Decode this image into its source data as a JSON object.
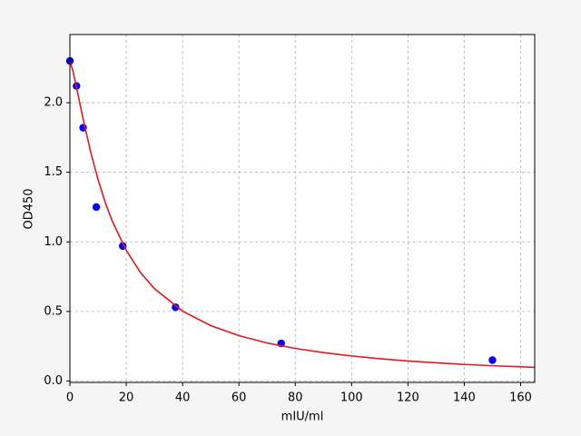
{
  "chart_data": {
    "type": "scatter",
    "xlabel": "mIU/ml",
    "ylabel": "OD450",
    "xlim": [
      0,
      165
    ],
    "ylim": [
      -0.01,
      2.49
    ],
    "xticks": [
      0,
      20,
      40,
      60,
      80,
      100,
      120,
      140,
      160
    ],
    "yticks": [
      {
        "value": 0,
        "label": "0.0"
      },
      0.5,
      {
        "value": 1,
        "label": "1.0"
      },
      1.5,
      {
        "value": 2,
        "label": "2.0"
      }
    ],
    "grid": true,
    "series": [
      {
        "type": "scatter",
        "color": "#0000ff",
        "x": [
          0,
          2.34,
          4.69,
          9.38,
          18.75,
          37.5,
          75,
          150
        ],
        "values": [
          2.3,
          2.12,
          1.82,
          1.25,
          0.97,
          0.53,
          0.27,
          0.15
        ]
      },
      {
        "type": "line",
        "color": "#e31a1c",
        "x": [
          0,
          1,
          2,
          3,
          4,
          5,
          7.5,
          10,
          12.5,
          15,
          20,
          25,
          30,
          40,
          50,
          60,
          70,
          80,
          90,
          100,
          110,
          120,
          130,
          140,
          150,
          165
        ],
        "values": [
          2.3,
          2.234,
          2.144,
          2.047,
          1.95,
          1.855,
          1.636,
          1.447,
          1.286,
          1.15,
          0.939,
          0.781,
          0.664,
          0.502,
          0.398,
          0.326,
          0.273,
          0.234,
          0.204,
          0.18,
          0.16,
          0.144,
          0.131,
          0.119,
          0.11,
          0.098
        ]
      }
    ]
  }
}
